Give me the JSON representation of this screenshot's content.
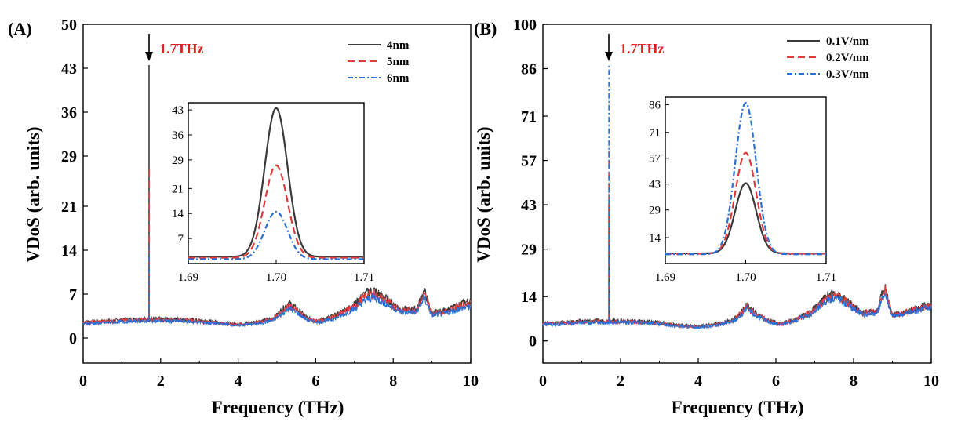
{
  "figure": {
    "xlabel": "Frequency (THz)",
    "ylabel": "VDoS (arb. units)"
  },
  "chart_data": [
    {
      "panel_label": "(A)",
      "type": "line",
      "xlabel": "Frequency (THz)",
      "ylabel": "VDoS (arb. units)",
      "xlim": [
        0,
        10
      ],
      "ylim": [
        -4,
        50
      ],
      "xticks": [
        "0",
        "2",
        "4",
        "6",
        "8",
        "10"
      ],
      "yticks": [
        "0",
        "7",
        "14",
        "21",
        "29",
        "36",
        "43",
        "50"
      ],
      "annotation": "1.7THz",
      "annotation_x": 1.7,
      "legend_position": "top-right",
      "series": [
        {
          "name": "4nm",
          "color": "#3a3a3a",
          "dash": "solid",
          "peak_1_7": 43.5,
          "x": [
            0,
            0.5,
            1,
            1.5,
            2,
            2.5,
            3,
            3.5,
            4,
            4.5,
            4.9,
            5.15,
            5.3,
            5.5,
            5.8,
            6.1,
            6.5,
            7.0,
            7.3,
            7.5,
            7.8,
            8.2,
            8.6,
            8.8,
            9.0,
            9.4,
            9.8,
            10
          ],
          "y": [
            2.6,
            2.7,
            2.9,
            3.0,
            3.0,
            3.0,
            2.8,
            2.5,
            2.2,
            2.6,
            3.1,
            4.6,
            5.6,
            4.7,
            3.1,
            2.8,
            3.6,
            5.4,
            7.2,
            7.6,
            6.4,
            4.6,
            4.6,
            7.6,
            4.0,
            4.5,
            5.6,
            5.9
          ]
        },
        {
          "name": "5nm",
          "color": "#e03a3a",
          "dash": "dash",
          "peak_1_7": 27.5,
          "x": [
            0,
            0.5,
            1,
            1.5,
            2,
            2.5,
            3,
            3.5,
            4,
            4.5,
            4.9,
            5.15,
            5.3,
            5.5,
            5.8,
            6.1,
            6.5,
            7.0,
            7.3,
            7.5,
            7.8,
            8.2,
            8.6,
            8.8,
            9.0,
            9.4,
            9.8,
            10
          ],
          "y": [
            2.5,
            2.6,
            2.8,
            2.9,
            2.9,
            2.9,
            2.7,
            2.4,
            2.1,
            2.5,
            3.0,
            4.3,
            5.2,
            4.4,
            3.0,
            2.7,
            3.4,
            5.1,
            6.8,
            7.1,
            6.0,
            4.4,
            4.4,
            7.1,
            3.9,
            4.3,
            5.3,
            5.5
          ]
        },
        {
          "name": "6nm",
          "color": "#2a6fd6",
          "dash": "dashdot",
          "peak_1_7": 14.5,
          "x": [
            0,
            0.5,
            1,
            1.5,
            2,
            2.5,
            3,
            3.5,
            4,
            4.5,
            4.9,
            5.15,
            5.3,
            5.5,
            5.8,
            6.1,
            6.5,
            7.0,
            7.3,
            7.5,
            7.8,
            8.2,
            8.6,
            8.8,
            9.0,
            9.4,
            9.8,
            10
          ],
          "y": [
            2.3,
            2.4,
            2.6,
            2.7,
            2.7,
            2.7,
            2.5,
            2.3,
            2.0,
            2.3,
            2.8,
            3.9,
            4.8,
            4.1,
            2.8,
            2.5,
            3.1,
            4.6,
            6.1,
            6.5,
            5.5,
            4.1,
            4.1,
            6.4,
            3.6,
            4.0,
            4.8,
            5.0
          ]
        }
      ],
      "inset": {
        "xlim": [
          1.69,
          1.71
        ],
        "ylim": [
          0,
          45
        ],
        "xticks": [
          "1.69",
          "1.70",
          "1.71"
        ],
        "yticks": [
          "7",
          "14",
          "21",
          "29",
          "36",
          "43"
        ],
        "center": 1.7,
        "width": 0.0013,
        "peaks": [
          43.5,
          27.5,
          14.5
        ],
        "baselines": [
          1.9,
          1.6,
          1.2
        ]
      }
    },
    {
      "panel_label": "(B)",
      "type": "line",
      "xlabel": "Frequency (THz)",
      "ylabel": "VDoS (arb. units)",
      "xlim": [
        0,
        10
      ],
      "ylim": [
        -7,
        100
      ],
      "xticks": [
        "0",
        "2",
        "4",
        "6",
        "8",
        "10"
      ],
      "yticks": [
        "0",
        "14",
        "29",
        "43",
        "57",
        "71",
        "86",
        "100"
      ],
      "annotation": "1.7THz",
      "annotation_x": 1.7,
      "legend_position": "top-right",
      "series": [
        {
          "name": "0.1V/nm",
          "color": "#3a3a3a",
          "dash": "solid",
          "peak_1_7": 43.5,
          "x": [
            0,
            0.5,
            1,
            1.5,
            2,
            2.5,
            3,
            3.5,
            4,
            4.5,
            4.9,
            5.1,
            5.25,
            5.45,
            5.8,
            6.1,
            6.5,
            7.0,
            7.3,
            7.5,
            7.8,
            8.2,
            8.6,
            8.8,
            9.0,
            9.4,
            9.8,
            10
          ],
          "y": [
            5.6,
            5.8,
            6.2,
            6.3,
            6.3,
            6.2,
            5.8,
            5.0,
            4.6,
            5.4,
            6.6,
            8.8,
            11.2,
            9.0,
            6.6,
            5.4,
            6.8,
            10.2,
            14.0,
            15.2,
            12.8,
            9.0,
            9.4,
            17.5,
            8.2,
            9.4,
            11.0,
            11.6
          ]
        },
        {
          "name": "0.2V/nm",
          "color": "#e03a3a",
          "dash": "dash",
          "peak_1_7": 60.0,
          "x": [
            0,
            0.5,
            1,
            1.5,
            2,
            2.5,
            3,
            3.5,
            4,
            4.5,
            4.9,
            5.1,
            5.25,
            5.45,
            5.8,
            6.1,
            6.5,
            7.0,
            7.3,
            7.5,
            7.8,
            8.2,
            8.6,
            8.8,
            9.0,
            9.4,
            9.8,
            10
          ],
          "y": [
            5.4,
            5.6,
            6.0,
            6.1,
            6.1,
            6.0,
            5.6,
            4.8,
            4.5,
            5.2,
            6.4,
            8.5,
            10.8,
            8.7,
            6.4,
            5.3,
            6.6,
            9.8,
            13.6,
            14.8,
            12.5,
            8.8,
            9.2,
            16.5,
            8.0,
            9.2,
            10.7,
            11.3
          ]
        },
        {
          "name": "0.3V/nm",
          "color": "#2a6fd6",
          "dash": "dashdot",
          "peak_1_7": 87.0,
          "x": [
            0,
            0.5,
            1,
            1.5,
            2,
            2.5,
            3,
            3.5,
            4,
            4.5,
            4.9,
            5.1,
            5.25,
            5.45,
            5.8,
            6.1,
            6.5,
            7.0,
            7.3,
            7.5,
            7.8,
            8.2,
            8.6,
            8.8,
            9.0,
            9.4,
            9.8,
            10
          ],
          "y": [
            5.2,
            5.4,
            5.8,
            5.9,
            5.9,
            5.8,
            5.4,
            4.6,
            4.3,
            5.0,
            6.1,
            8.0,
            10.1,
            8.2,
            6.1,
            5.1,
            6.3,
            9.2,
            12.8,
            14.0,
            11.8,
            8.4,
            8.8,
            15.2,
            7.7,
            8.8,
            10.2,
            10.8
          ]
        }
      ],
      "inset": {
        "xlim": [
          1.69,
          1.71
        ],
        "ylim": [
          0,
          90
        ],
        "xticks": [
          "1.69",
          "1.70",
          "1.71"
        ],
        "yticks": [
          "14",
          "29",
          "43",
          "57",
          "71",
          "86"
        ],
        "center": 1.7,
        "width": 0.0013,
        "peaks": [
          43.5,
          60.0,
          87.0
        ],
        "baselines": [
          5.5,
          5.3,
          5.0
        ]
      }
    }
  ]
}
